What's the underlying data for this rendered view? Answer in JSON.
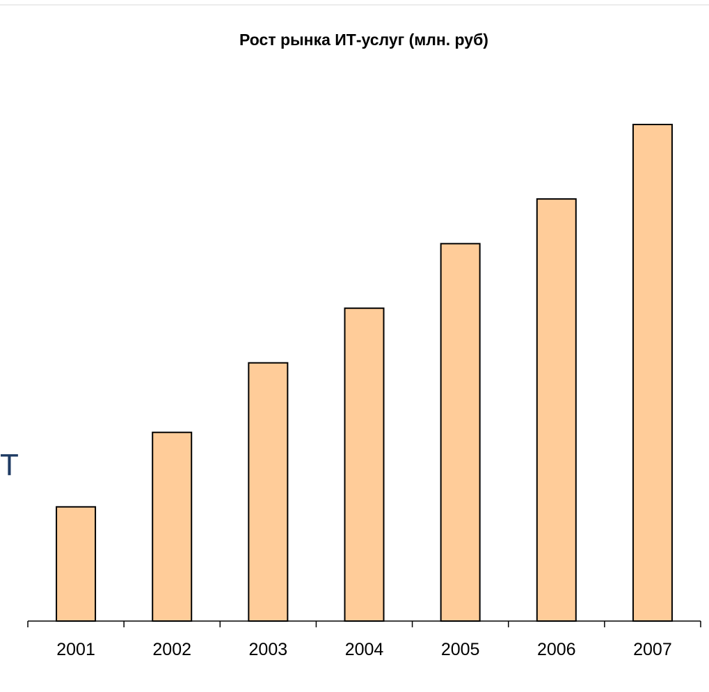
{
  "chart_data": {
    "type": "bar",
    "title": "Рост рынка ИТ-услуг (млн. руб)",
    "xlabel": "",
    "ylabel": "",
    "categories": [
      "2001",
      "2002",
      "2003",
      "2004",
      "2005",
      "2006",
      "2007"
    ],
    "values": [
      23,
      38,
      52,
      63,
      76,
      85,
      100
    ],
    "ylim": [
      0,
      100
    ],
    "grid": false,
    "legend": "none",
    "bar_color": "#ffcc99",
    "bar_stroke": "#000000"
  },
  "side_text": "Т"
}
